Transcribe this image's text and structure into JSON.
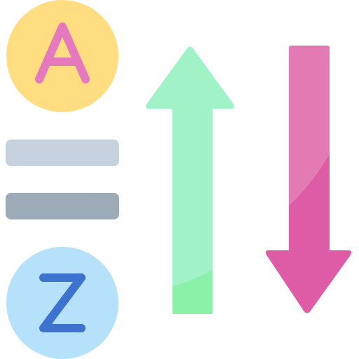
{
  "icon": {
    "name": "sort-alphabetical-icon",
    "top_badge": {
      "letter": "A",
      "circle_color": "#ffdd80",
      "circle_shade_color": "#ffcf5d",
      "letter_color": "#e47abd"
    },
    "bottom_badge": {
      "letter": "Z",
      "circle_color": "#b6e1fb",
      "circle_shade_color": "#92d7fc",
      "letter_color": "#3e72cf"
    },
    "lines": {
      "upper_color": "#c6d3de",
      "lower_color": "#9daab8"
    },
    "up_arrow": {
      "color": "#a2f2c8",
      "shade_color": "#8cf1a8"
    },
    "down_arrow": {
      "color": "#e47ab3",
      "shade_color": "#de5ca5"
    }
  }
}
